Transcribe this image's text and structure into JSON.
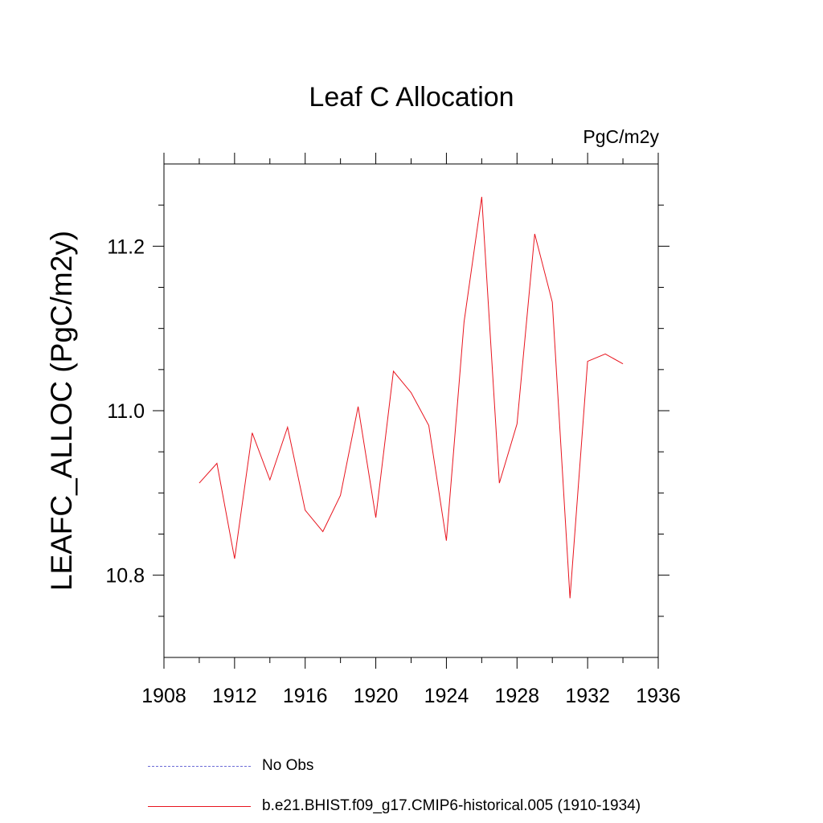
{
  "chart_data": {
    "type": "line",
    "title": "Leaf C Allocation",
    "units": "PgC/m2y",
    "ylabel": "LEAFC_ALLOC  (PgC/m2y)",
    "xlabel": "",
    "xlim": [
      1908,
      1936
    ],
    "ylim": [
      10.7,
      11.3
    ],
    "x_ticks": [
      1908,
      1912,
      1916,
      1920,
      1924,
      1928,
      1932,
      1936
    ],
    "x_minor_step": 2,
    "y_ticks": [
      "10.8",
      "11.0",
      "11.2"
    ],
    "y_minor_step": 0.05,
    "series": [
      {
        "name": "b.e21.BHIST.f09_g17.CMIP6-historical.005 (1910-1934)",
        "color": "#e8141e",
        "style": "solid",
        "x": [
          1910,
          1911,
          1912,
          1913,
          1914,
          1915,
          1916,
          1917,
          1918,
          1919,
          1920,
          1921,
          1922,
          1923,
          1924,
          1925,
          1926,
          1927,
          1928,
          1929,
          1930,
          1931,
          1932,
          1933,
          1934
        ],
        "values": [
          10.912,
          10.936,
          10.82,
          10.973,
          10.916,
          10.98,
          10.879,
          10.853,
          10.897,
          11.005,
          10.87,
          11.048,
          11.022,
          10.982,
          10.842,
          11.108,
          11.26,
          10.912,
          10.984,
          11.215,
          11.132,
          10.772,
          11.06,
          11.069,
          11.057
        ]
      }
    ],
    "legend": [
      {
        "label": "No Obs",
        "color": "#6b6bd6",
        "style": "dashed"
      },
      {
        "label": "b.e21.BHIST.f09_g17.CMIP6-historical.005 (1910-1934)",
        "color": "#e8141e",
        "style": "solid"
      }
    ]
  }
}
